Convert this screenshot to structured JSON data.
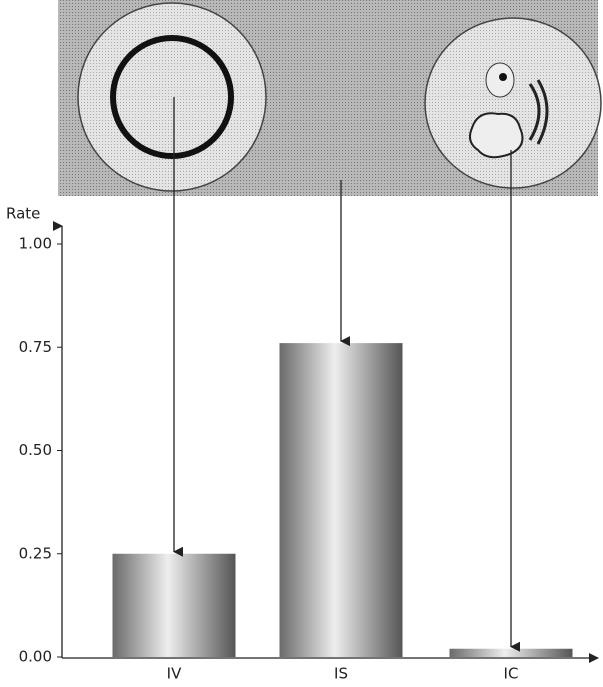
{
  "chart_data": {
    "type": "bar",
    "y_label": "Rate",
    "categories": [
      "IV",
      "IS",
      "IC"
    ],
    "values": [
      0.25,
      0.76,
      0.02
    ],
    "ylim": [
      0,
      1
    ],
    "yticks": [
      {
        "value": 0,
        "label": "0.00"
      },
      {
        "value": 0.25,
        "label": "0.25"
      },
      {
        "value": 0.5,
        "label": "0.50"
      },
      {
        "value": 0.75,
        "label": "0.75"
      },
      {
        "value": 1,
        "label": "1.00"
      }
    ],
    "grid": false
  }
}
